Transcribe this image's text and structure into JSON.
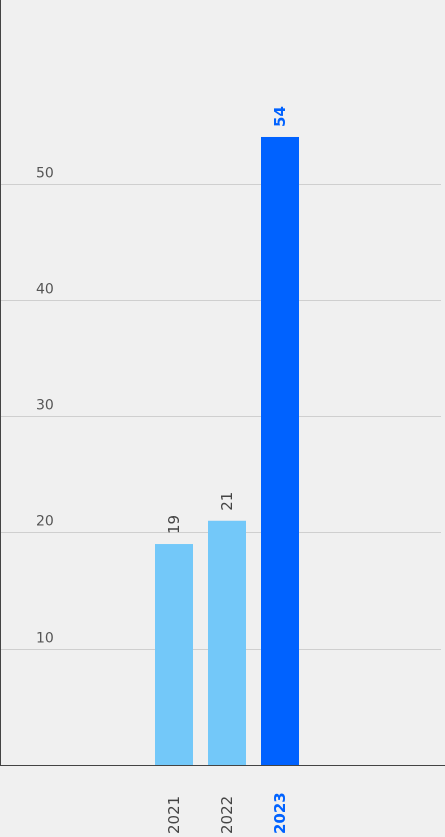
{
  "chart_data": {
    "type": "bar",
    "title": "",
    "xlabel": "",
    "ylabel": "",
    "categories": [
      "2021",
      "2022",
      "2023"
    ],
    "values": [
      19,
      21,
      54
    ],
    "highlight_index": 2,
    "yticks": [
      10,
      20,
      30,
      40,
      50
    ],
    "ylim": [
      0,
      54
    ],
    "grid": true,
    "colors": {
      "bar": "#73c8f9",
      "highlight": "#0062ff",
      "highlight_text": "#0062ff",
      "grid": "#cfcfcf",
      "axis": "#444444",
      "background": "#f0f0f0"
    }
  }
}
